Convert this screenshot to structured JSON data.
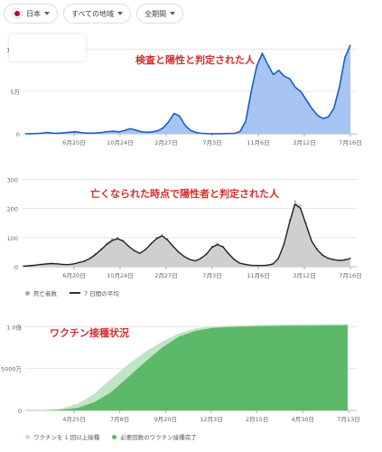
{
  "filters": {
    "country": "日本",
    "region": "すべての地域",
    "period": "全期間"
  },
  "colors": {
    "cases_line": "#1a5fc4",
    "cases_fill": "#a7c4f2",
    "deaths_line": "#222222",
    "deaths_fill": "#cfcfcf",
    "vacc_one_dose": "#bfe5c5",
    "vacc_full": "#5cb96a",
    "title_red": "#d32f2f"
  },
  "chart_data": [
    {
      "type": "area",
      "title": "検査と陽性と判定された人",
      "y_ticks": [
        "0",
        "5万",
        "10万"
      ],
      "ylim": [
        0,
        110000
      ],
      "x_ticks": [
        "6月20日",
        "10月24日",
        "2月27日",
        "7月3日",
        "11月6日",
        "3月12日",
        "7月16日"
      ],
      "series": [
        {
          "values": [
            0,
            100,
            300,
            800,
            1500,
            800,
            600,
            1200,
            1800,
            2500,
            1500,
            900,
            700,
            1000,
            1600,
            2600,
            3000,
            2200,
            3800,
            6000,
            4500,
            2500,
            1800,
            2200,
            3500,
            6800,
            14000,
            24000,
            21000,
            10000,
            4000,
            1500,
            500,
            200,
            150,
            150,
            200,
            300,
            400,
            3000,
            15000,
            50000,
            80000,
            95000,
            82000,
            70000,
            75000,
            68000,
            65000,
            55000,
            50000,
            40000,
            30000,
            22000,
            18000,
            20000,
            30000,
            55000,
            90000,
            105000
          ]
        }
      ]
    },
    {
      "type": "area",
      "title": "亡くなられた時点で陽性者と判定された人",
      "y_ticks": [
        "0",
        "100",
        "200",
        "300"
      ],
      "ylim": [
        0,
        320
      ],
      "x_ticks": [
        "6月20日",
        "10月24日",
        "2月27日",
        "7月3日",
        "11月6日",
        "3月12日",
        "7月16日"
      ],
      "series": [
        {
          "name": "死亡者数",
          "values": [
            2,
            3,
            5,
            8,
            10,
            12,
            10,
            8,
            7,
            10,
            15,
            20,
            30,
            45,
            60,
            80,
            95,
            100,
            90,
            70,
            55,
            45,
            60,
            80,
            100,
            110,
            95,
            70,
            50,
            35,
            25,
            20,
            30,
            45,
            70,
            80,
            70,
            45,
            25,
            12,
            8,
            5,
            4,
            4,
            6,
            10,
            30,
            80,
            160,
            225,
            210,
            150,
            90,
            60,
            40,
            30,
            25,
            22,
            25,
            30
          ]
        },
        {
          "name": "7 日間の平均",
          "values": [
            2,
            3,
            5,
            7,
            9,
            11,
            10,
            8,
            7,
            9,
            14,
            19,
            28,
            42,
            58,
            76,
            90,
            96,
            88,
            70,
            55,
            46,
            58,
            78,
            96,
            106,
            92,
            70,
            50,
            35,
            25,
            20,
            28,
            43,
            66,
            76,
            68,
            45,
            25,
            12,
            8,
            5,
            4,
            4,
            5,
            9,
            28,
            76,
            150,
            215,
            200,
            145,
            88,
            58,
            39,
            29,
            24,
            21,
            23,
            28
          ]
        }
      ]
    },
    {
      "type": "area",
      "title": "ワクチン接種状況",
      "y_ticks": [
        "0",
        "5000万",
        "1.0億"
      ],
      "ylim": [
        0,
        110000000
      ],
      "x_ticks": [
        "4月25日",
        "7月8日",
        "9月20日",
        "12月3日",
        "2月15日",
        "4月30日",
        "7月13日"
      ],
      "series": [
        {
          "name": "ワクチンを 1 回以上接種",
          "values": [
            0,
            500000,
            2000000,
            8000000,
            20000000,
            38000000,
            55000000,
            70000000,
            82000000,
            92000000,
            98000000,
            100000000,
            101000000,
            101500000,
            102000000,
            102300000,
            102600000,
            102800000,
            103000000,
            103200000
          ]
        },
        {
          "name": "必要回数のワクチン接種完了",
          "values": [
            0,
            100000,
            800000,
            3000000,
            10000000,
            22000000,
            40000000,
            58000000,
            75000000,
            88000000,
            95000000,
            98500000,
            99500000,
            100000000,
            100500000,
            100800000,
            101000000,
            101200000,
            101400000,
            101600000
          ]
        }
      ]
    }
  ]
}
